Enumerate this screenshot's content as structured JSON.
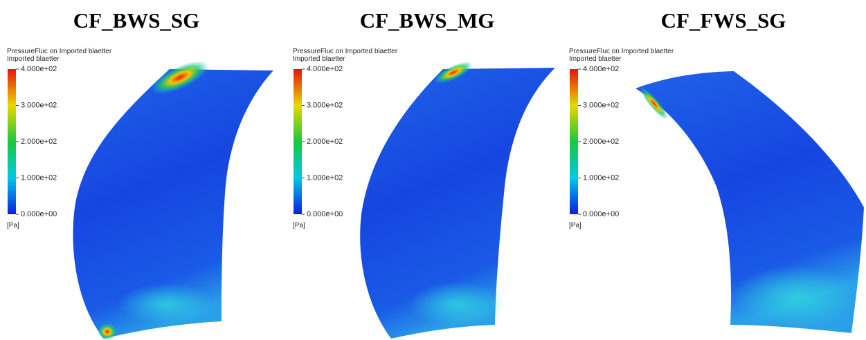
{
  "panels": [
    {
      "title": "CF_BWS_SG",
      "legend_title": "PressureFluc on Imported blaetter",
      "legend_subtitle": "Imported blaetter",
      "ticks": [
        "4.000e+02",
        "3.000e+02",
        "2.000e+02",
        "1.000e+02",
        "0.000e+00"
      ],
      "unit": "[Pa]"
    },
    {
      "title": "CF_BWS_MG",
      "legend_title": "PressureFluc on Imported blaetter",
      "legend_subtitle": "Imported blaetter",
      "ticks": [
        "4.000e+02",
        "3.000e+02",
        "2.000e+02",
        "1.000e+02",
        "0.000e+00"
      ],
      "unit": "[Pa]"
    },
    {
      "title": "CF_FWS_SG",
      "legend_title": "PressureFluc on Imported blaetter",
      "legend_subtitle": "Imported blaetter",
      "ticks": [
        "4.000e+02",
        "3.000e+02",
        "2.000e+02",
        "1.000e+02",
        "0.000e+00"
      ],
      "unit": "[Pa]"
    }
  ]
}
